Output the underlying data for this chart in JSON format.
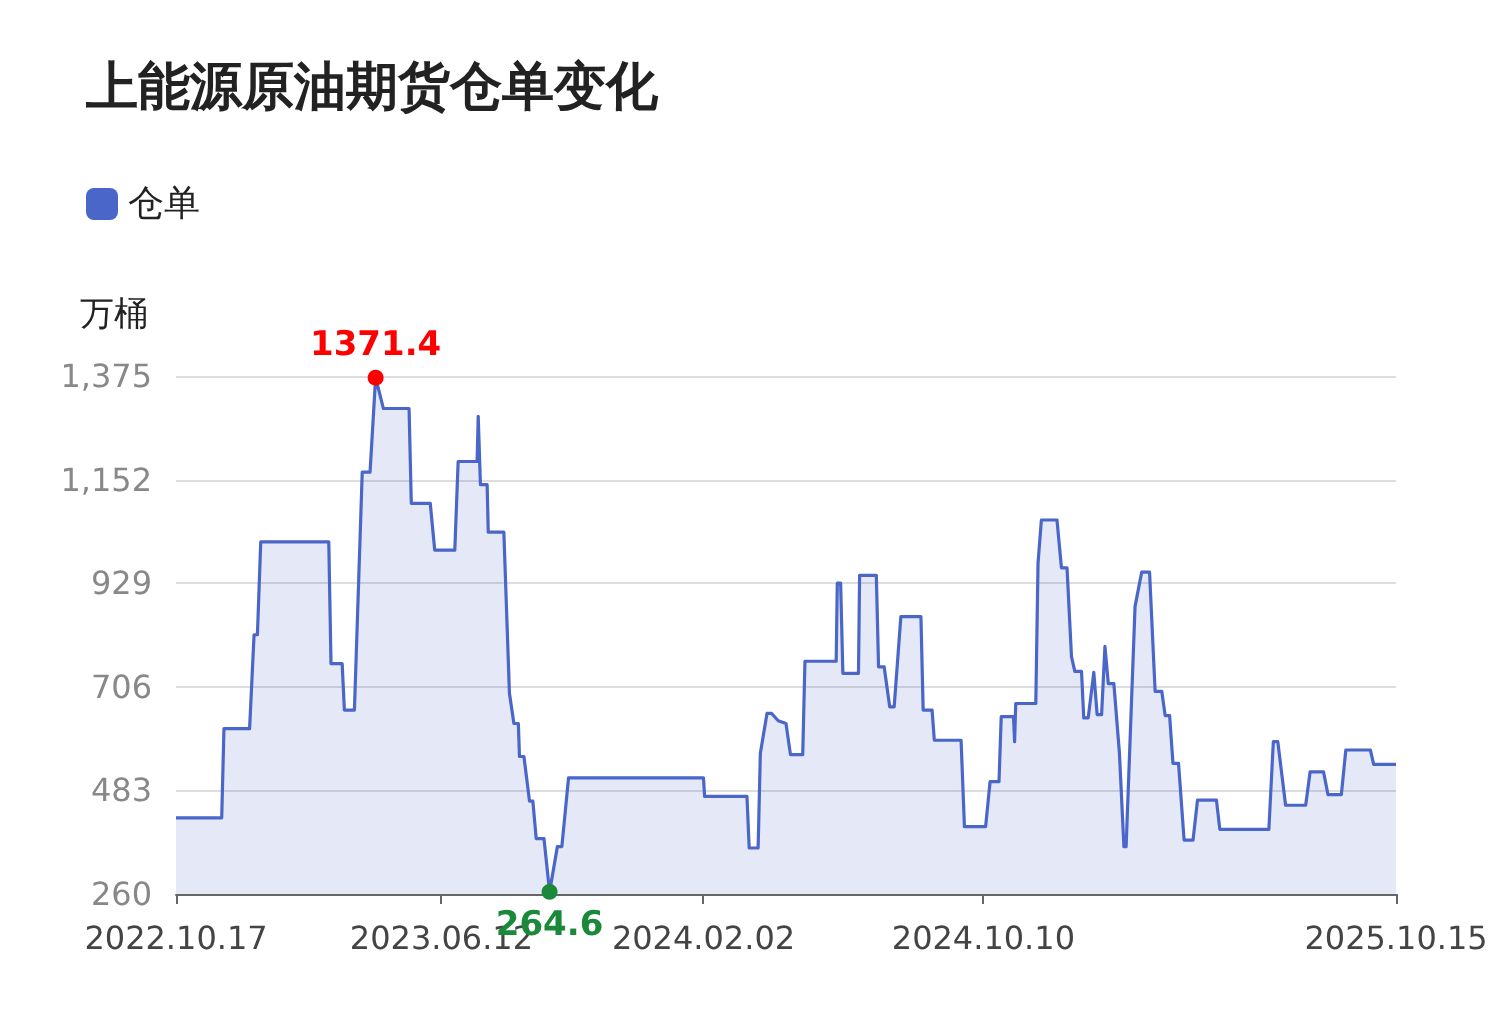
{
  "chart_data": {
    "type": "area",
    "title": "上能源原油期货仓单变化",
    "ylabel": "万桶",
    "legend": "top left",
    "grid": "y",
    "marker": "none",
    "xlim": [
      "2022-10-17",
      "2025-10-15"
    ],
    "xticks": [
      {
        "value": "2022-10-17",
        "label": "2022.10.17"
      },
      {
        "value": "2023-06-12",
        "label": "2023.06.12"
      },
      {
        "value": "2024-02-02",
        "label": "2024.02.02"
      },
      {
        "value": "2024-10-10",
        "label": "2024.10.10"
      },
      {
        "value": "2025-10-15",
        "label": "2025.10.15"
      }
    ],
    "ylim": [
      260,
      1375
    ],
    "yticks": [
      {
        "value": 260,
        "label": "260"
      },
      {
        "value": 483,
        "label": "483"
      },
      {
        "value": 706,
        "label": "706"
      },
      {
        "value": 929,
        "label": "929"
      },
      {
        "value": 1152,
        "label": "1,152"
      },
      {
        "value": 1375,
        "label": "1,375"
      }
    ],
    "annotations": [
      {
        "text": "1371.4",
        "x": "2023-04-14",
        "y": 1371.4
      },
      {
        "text": "264.6",
        "x": "2023-09-17",
        "y": 264.6
      }
    ],
    "series": [
      {
        "name": "仓单",
        "color": "#4a66c8",
        "x": [
          "2022-10-17",
          "2022-11-27",
          "2022-11-29",
          "2022-12-22",
          "2022-12-26",
          "2022-12-29",
          "2023-01-01",
          "2023-03-03",
          "2023-03-05",
          "2023-03-15",
          "2023-03-17",
          "2023-03-26",
          "2023-04-02",
          "2023-04-09",
          "2023-04-14",
          "2023-04-21",
          "2023-05-14",
          "2023-05-16",
          "2023-06-02",
          "2023-06-06",
          "2023-06-24",
          "2023-06-27",
          "2023-07-14",
          "2023-07-15",
          "2023-07-17",
          "2023-07-23",
          "2023-07-24",
          "2023-08-07",
          "2023-08-12",
          "2023-08-16",
          "2023-08-20",
          "2023-08-21",
          "2023-08-25",
          "2023-08-30",
          "2023-09-02",
          "2023-09-05",
          "2023-09-12",
          "2023-09-17",
          "2023-09-24",
          "2023-09-28",
          "2023-10-04",
          "2024-02-02",
          "2024-02-03",
          "2024-03-12",
          "2024-03-14",
          "2024-03-22",
          "2024-03-24",
          "2024-03-30",
          "2024-04-03",
          "2024-04-09",
          "2024-04-16",
          "2024-04-20",
          "2024-05-01",
          "2024-05-03",
          "2024-05-31",
          "2024-06-01",
          "2024-06-04",
          "2024-06-06",
          "2024-06-20",
          "2024-06-21",
          "2024-07-06",
          "2024-07-08",
          "2024-07-13",
          "2024-07-18",
          "2024-07-22",
          "2024-07-28",
          "2024-08-15",
          "2024-08-17",
          "2024-08-25",
          "2024-08-27",
          "2024-09-20",
          "2024-09-23",
          "2024-10-12",
          "2024-10-16",
          "2024-10-24",
          "2024-10-26",
          "2024-11-06",
          "2024-11-07",
          "2024-11-08",
          "2024-11-26",
          "2024-11-28",
          "2024-12-01",
          "2024-12-15",
          "2024-12-19",
          "2024-12-24",
          "2024-12-28",
          "2024-12-31",
          "2025-01-06",
          "2025-01-08",
          "2025-01-12",
          "2025-01-17",
          "2025-01-20",
          "2025-01-24",
          "2025-01-27",
          "2025-01-30",
          "2025-02-04",
          "2025-02-09",
          "2025-02-13",
          "2025-02-15",
          "2025-02-23",
          "2025-03-01",
          "2025-03-08",
          "2025-03-13",
          "2025-03-19",
          "2025-03-22",
          "2025-03-26",
          "2025-03-29",
          "2025-04-03",
          "2025-04-08",
          "2025-04-16",
          "2025-04-20",
          "2025-05-07",
          "2025-05-10",
          "2025-06-23",
          "2025-06-27",
          "2025-07-01",
          "2025-07-08",
          "2025-07-26",
          "2025-07-30",
          "2025-08-11",
          "2025-08-15",
          "2025-08-27",
          "2025-08-31",
          "2025-09-22",
          "2025-09-25",
          "2025-10-15"
        ],
        "values": [
          424,
          424,
          616,
          616,
          818,
          818,
          1018,
          1018,
          756,
          756,
          656,
          656,
          1168,
          1168,
          1371.4,
          1305,
          1305,
          1101,
          1101,
          1000,
          1000,
          1191,
          1191,
          1288,
          1141,
          1141,
          1039,
          1039,
          692,
          627,
          627,
          556,
          556,
          460,
          460,
          379,
          379,
          264.6,
          362,
          362,
          510,
          510,
          470,
          470,
          359,
          359,
          563,
          649,
          649,
          633,
          627,
          560,
          560,
          761,
          761,
          929,
          929,
          735,
          735,
          946,
          946,
          749,
          749,
          663,
          663,
          857,
          857,
          656,
          656,
          591,
          591,
          405,
          405,
          502,
          502,
          642,
          642,
          588,
          670,
          670,
          972,
          1065,
          1065,
          962,
          962,
          771,
          739,
          739,
          639,
          639,
          737,
          646,
          646,
          793,
          713,
          713,
          563,
          362,
          362,
          879,
          953,
          953,
          696,
          696,
          644,
          644,
          541,
          541,
          376,
          376,
          462,
          462,
          399,
          399,
          588,
          588,
          451,
          451,
          523,
          523,
          474,
          474,
          570,
          570,
          539,
          539
        ]
      }
    ]
  }
}
